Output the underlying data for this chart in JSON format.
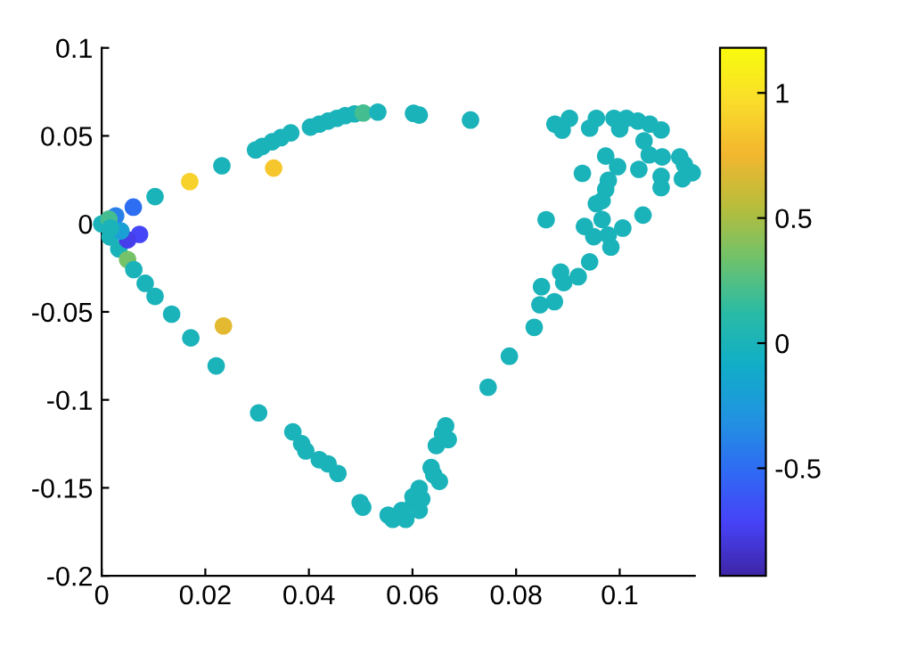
{
  "chart_data": {
    "type": "scatter",
    "x": [
      0,
      0.0103,
      0.017,
      0.0232,
      0.0332,
      0.0297,
      0.031,
      0.0329,
      0.0346,
      0.0365,
      0.0403,
      0.042,
      0.0437,
      0.0454,
      0.047,
      0.0488,
      0.0505,
      0.0533,
      0.0602,
      0.0613,
      0.0712,
      0.0875,
      0.0903,
      0.0889,
      0.0955,
      0.0942,
      0.0989,
      0.1,
      0.1013,
      0.1035,
      0.1058,
      0.108,
      0.1047,
      0.1057,
      0.1082,
      0.1116,
      0.1125,
      0.114,
      0.1121,
      0.108,
      0.108,
      0.1037,
      0.0996,
      0.0973,
      0.0928,
      0.0978,
      0.0973,
      0.0955,
      0.0966,
      0.0858,
      0.1045,
      0.0932,
      0.095,
      0.0966,
      0.0978,
      0.1006,
      0.0983,
      0.0942,
      0.092,
      0.0886,
      0.0892,
      0.0849,
      0.0874,
      0.0846,
      0.0835,
      0.0787,
      0.0746,
      0.0664,
      0.0669,
      0.0646,
      0.0636,
      0.0641,
      0.0613,
      0.0602,
      0.0016,
      0.0033,
      0.005,
      0.0062,
      0.0084,
      0.0103,
      0.0135,
      0.0172,
      0.0235,
      0.0221,
      0.0303,
      0.0369,
      0.0386,
      0.0394,
      0.042,
      0.0437,
      0.0456,
      0.0499,
      0.0504,
      0.0553,
      0.0562,
      0.0579,
      0.0587,
      0.0601,
      0.0613,
      0.0618,
      0.0652,
      0.0658,
      0.0073,
      0.005,
      0.0027,
      0.0014,
      0.0061,
      0.0037,
      0.0017
    ],
    "values": [
      0,
      0.0155,
      0.024,
      0.033,
      0.0317,
      0.042,
      0.044,
      0.0466,
      0.049,
      0.0517,
      0.055,
      0.0567,
      0.0584,
      0.06,
      0.0615,
      0.0625,
      0.063,
      0.0635,
      0.0628,
      0.0618,
      0.059,
      0.0567,
      0.06,
      0.0533,
      0.06,
      0.0544,
      0.06,
      0.054,
      0.06,
      0.0584,
      0.0567,
      0.0534,
      0.0472,
      0.0392,
      0.038,
      0.038,
      0.0337,
      0.029,
      0.0256,
      0.0206,
      0.027,
      0.031,
      0.0325,
      0.0385,
      0.0287,
      0.0247,
      0.0196,
      0.0115,
      0.0132,
      0.0024,
      0.005,
      -0.0015,
      -0.0073,
      0.0025,
      -0.0064,
      -0.0024,
      -0.0132,
      -0.0216,
      -0.03,
      -0.0274,
      -0.0334,
      -0.0357,
      -0.0442,
      -0.046,
      -0.0588,
      -0.0752,
      -0.0928,
      -0.1148,
      -0.1226,
      -0.126,
      -0.1385,
      -0.1426,
      -0.1503,
      -0.1588,
      -0.0074,
      -0.0142,
      -0.0203,
      -0.026,
      -0.0338,
      -0.0412,
      -0.0513,
      -0.0648,
      -0.058,
      -0.0807,
      -0.1074,
      -0.1182,
      -0.1249,
      -0.129,
      -0.134,
      -0.1364,
      -0.1418,
      -0.1584,
      -0.161,
      -0.1655,
      -0.1679,
      -0.1629,
      -0.1679,
      -0.155,
      -0.1628,
      -0.1563,
      -0.1463,
      -0.1193,
      -0.006,
      -0.0091,
      0.0045,
      0.0027,
      0.0095,
      -0.004,
      -0.0023
    ],
    "cvalues": [
      0,
      0,
      0.9,
      0,
      0.85,
      0,
      0,
      0,
      0,
      0,
      0,
      0,
      0,
      0,
      0,
      0,
      0.2,
      0,
      0,
      0,
      0,
      0,
      0,
      0,
      0,
      0,
      0,
      0,
      0,
      0,
      0,
      0,
      0,
      0,
      0,
      0,
      0,
      0,
      0,
      0,
      0,
      0,
      0,
      0,
      0,
      0,
      0,
      0,
      0,
      0,
      0,
      0,
      0,
      0,
      0,
      0,
      0,
      0,
      0,
      0,
      0,
      0,
      0,
      0,
      0,
      0,
      0,
      0,
      0,
      0,
      0,
      0,
      0,
      0,
      0,
      0,
      0.35,
      0,
      0,
      0,
      0,
      0,
      0.7,
      0,
      0,
      0,
      0,
      0,
      0,
      0,
      0,
      0,
      0,
      0,
      0,
      0,
      0,
      0,
      0,
      0,
      0,
      0,
      -0.7,
      -0.75,
      -0.4,
      0.2,
      -0.5,
      -0.2,
      0
    ],
    "xlim": [
      0,
      0.1145
    ],
    "ylim": [
      -0.2,
      0.1
    ],
    "xticks": [
      0,
      0.02,
      0.04,
      0.06,
      0.08,
      0.1
    ],
    "yticks": [
      -0.2,
      -0.15,
      -0.1,
      -0.05,
      0,
      0.05,
      0.1
    ],
    "clim": [
      -0.93,
      1.18
    ],
    "cticks": [
      -0.5,
      0,
      0.5,
      1
    ],
    "marker": "circle",
    "grid": false
  }
}
